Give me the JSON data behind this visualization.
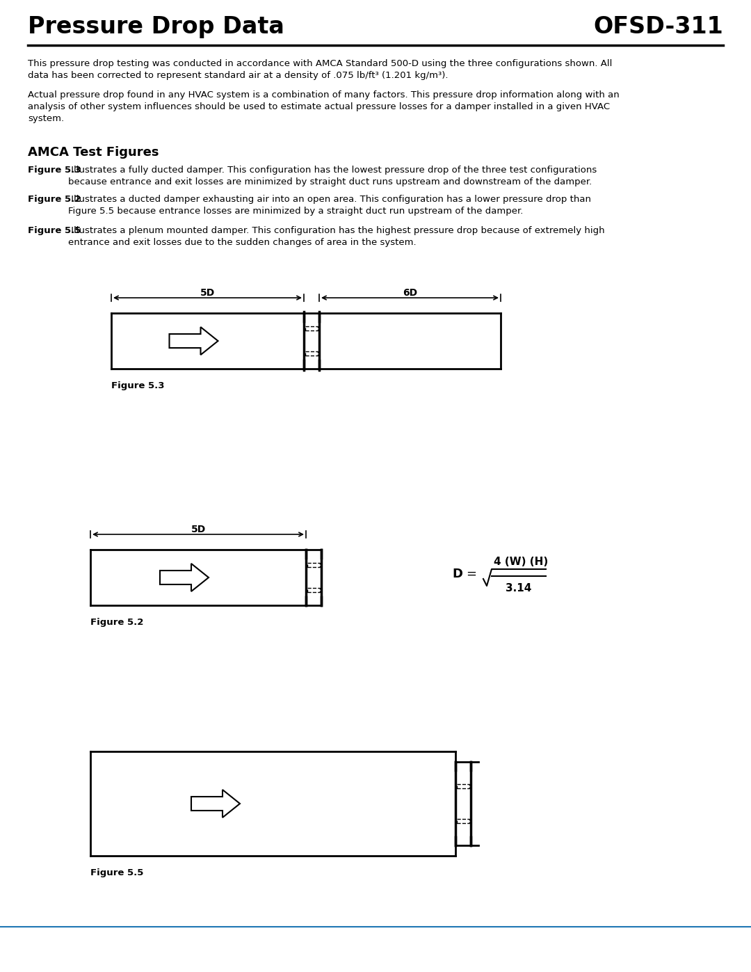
{
  "title_left": "Pressure Drop Data",
  "title_right": "OFSD-311",
  "para1": "This pressure drop testing was conducted in accordance with AMCA Standard 500-D using the three configurations shown. All\ndata has been corrected to represent standard air at a density of .075 lb/ft³ (1.201 kg/m³).",
  "para2": "Actual pressure drop found in any HVAC system is a combination of many factors. This pressure drop information along with an\nanalysis of other system influences should be used to estimate actual pressure losses for a damper installed in a given HVAC\nsystem.",
  "section_title": "AMCA Test Figures",
  "fig53_bold": "Figure 5.3",
  "fig53_text": " Illustrates a fully ducted damper. This configuration has the lowest pressure drop of the three test configurations\nbecause entrance and exit losses are minimized by straight duct runs upstream and downstream of the damper.",
  "fig52_bold": "Figure 5.2",
  "fig52_text": " Illustrates a ducted damper exhausting air into an open area. This configuration has a lower pressure drop than\nFigure 5.5 because entrance losses are minimized by a straight duct run upstream of the damper.",
  "fig55_bold": "Figure 5.5",
  "fig55_text": " Illustrates a plenum mounted damper. This configuration has the highest pressure drop because of extremely high\nentrance and exit losses due to the sudden changes of area in the system.",
  "bg_color": "#ffffff",
  "text_color": "#000000",
  "formula_D": "D",
  "formula_eq": "=",
  "formula_sqrt": "4 (W) (H)",
  "formula_denom": "3.14"
}
